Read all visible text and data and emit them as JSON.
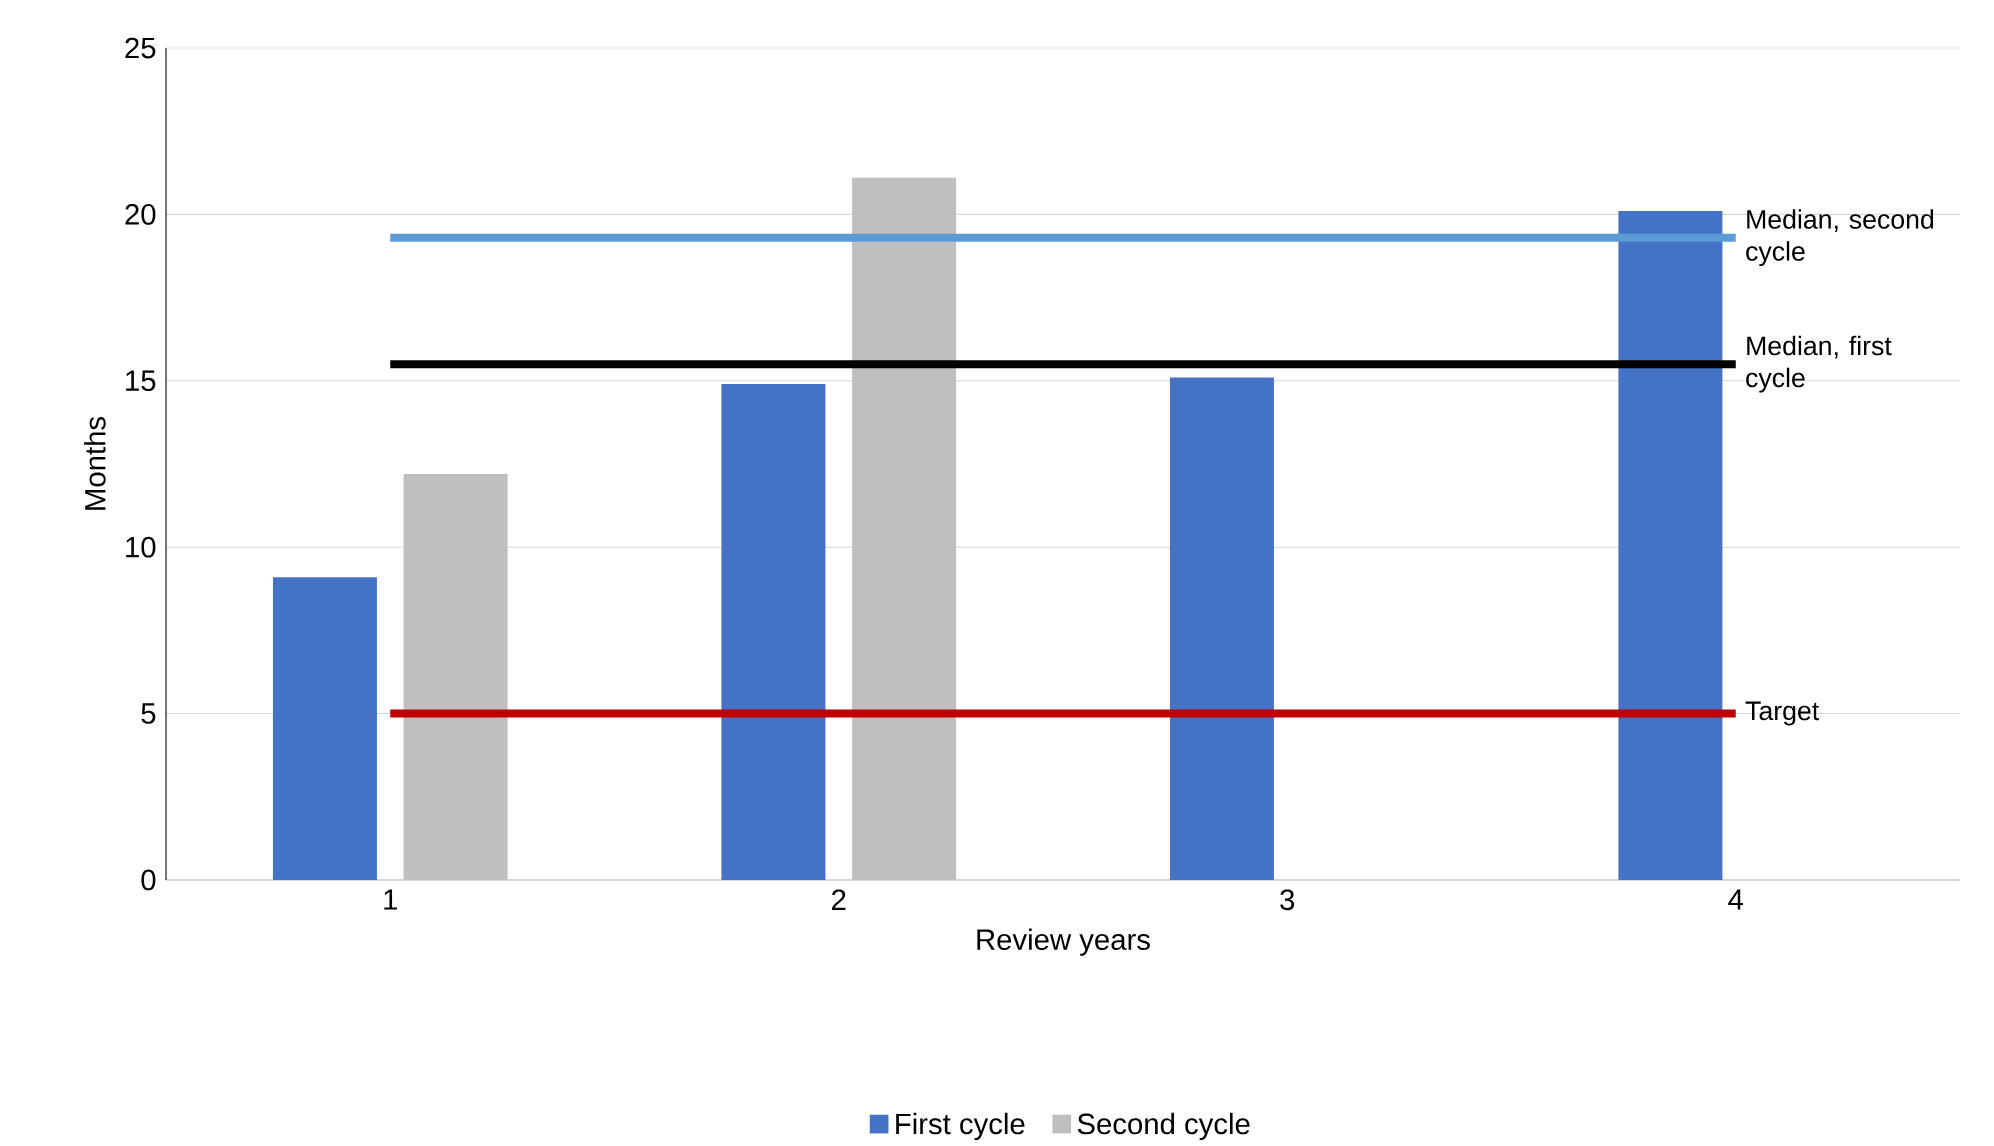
{
  "chart_data": {
    "type": "bar",
    "categories": [
      "1",
      "2",
      "3",
      "4"
    ],
    "xlabel": "Review years",
    "ylabel": "Months",
    "series": [
      {
        "name": "First cycle",
        "color": "#4472c4",
        "values": [
          9.1,
          14.9,
          15.1,
          20.1
        ]
      },
      {
        "name": "Second cycle",
        "color": "#bfbfbf",
        "values": [
          12.2,
          21.1,
          null,
          null
        ]
      }
    ],
    "ylim": [
      0,
      25
    ],
    "yticks": [
      0,
      5,
      10,
      15,
      20,
      25
    ],
    "grid": "y",
    "legend": "bottom",
    "ref_lines": [
      {
        "axis": "y",
        "value": 19.3,
        "label": "Median, second cycle",
        "color": "#5b9bd5"
      },
      {
        "axis": "y",
        "value": 15.5,
        "label": "Median, first cycle",
        "color": "#000000"
      },
      {
        "axis": "y",
        "value": 5,
        "label": "Target",
        "color": "#c00000"
      }
    ]
  }
}
